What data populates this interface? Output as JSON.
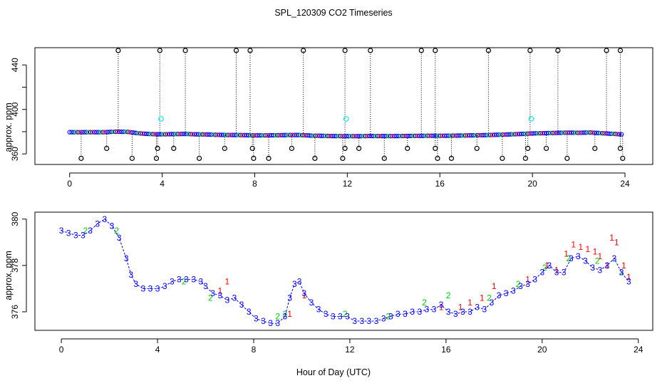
{
  "chart_data": {
    "title": "SPL_120309  CO2 Timeseries",
    "xlabel": "Hour of Day (UTC)",
    "colors": {
      "axis": "#000000",
      "series_1": "#ff0000",
      "series_2": "#00cc00",
      "series_3": "#0000ff",
      "outlier": "#000000",
      "highlight": "#00e5ee",
      "marker_dots": "#000000"
    },
    "panels": [
      {
        "type": "scatter",
        "ylabel": "approx. ppm",
        "xlim": [
          -1.5,
          25.2
        ],
        "ylim": [
          350.5,
          455.5
        ],
        "xticks": [
          0,
          4,
          8,
          12,
          16,
          20,
          24
        ],
        "yticks": [
          360,
          400,
          440
        ],
        "yticks_minor": [
          380,
          420
        ],
        "main_series": {
          "x": [
            0.0,
            0.5,
            1.0,
            1.5,
            2.0,
            2.5,
            3.0,
            3.5,
            4.0,
            4.5,
            5.0,
            5.5,
            6.0,
            6.5,
            7.0,
            7.5,
            8.0,
            8.5,
            9.0,
            9.5,
            10.0,
            10.5,
            11.0,
            11.5,
            12.0,
            12.5,
            13.0,
            13.5,
            14.0,
            14.5,
            15.0,
            15.5,
            16.0,
            16.5,
            17.0,
            17.5,
            18.0,
            18.5,
            19.0,
            19.5,
            20.0,
            20.5,
            21.0,
            21.5,
            22.0,
            22.5,
            23.0,
            23.5,
            23.9
          ],
          "y": [
            379.5,
            379.5,
            379.5,
            379.5,
            380.0,
            379.8,
            378.5,
            377.8,
            377.6,
            377.8,
            377.9,
            377.6,
            377.4,
            377.1,
            377.0,
            376.9,
            376.6,
            376.7,
            376.8,
            377.0,
            376.9,
            376.4,
            376.2,
            376.0,
            375.9,
            375.9,
            376.1,
            376.0,
            376.0,
            376.1,
            376.2,
            376.3,
            376.3,
            376.4,
            376.5,
            376.7,
            376.9,
            377.2,
            377.5,
            377.9,
            378.4,
            378.6,
            378.9,
            379.1,
            379.0,
            379.2,
            378.6,
            378.0,
            377.5
          ]
        },
        "outliers_high": {
          "y": 453,
          "x": [
            2.1,
            3.9,
            5.0,
            7.2,
            7.8,
            10.1,
            11.9,
            13.0,
            15.2,
            15.8,
            18.1,
            19.9,
            21.1,
            23.2,
            23.8
          ]
        },
        "outliers_low": {
          "y": 356,
          "x": [
            0.5,
            2.7,
            3.75,
            5.6,
            7.95,
            8.6,
            10.6,
            11.8,
            13.6,
            15.9,
            16.5,
            18.7,
            19.7,
            21.5,
            23.9
          ]
        },
        "outliers_mid": {
          "y": 365,
          "x": [
            1.6,
            3.8,
            4.5,
            6.7,
            7.9,
            9.6,
            11.9,
            12.5,
            14.6,
            15.8,
            17.6,
            19.8,
            20.6,
            22.7,
            23.8
          ]
        },
        "highlighted_points": {
          "x": [
            3.95,
            11.95,
            19.95
          ],
          "y": [
            391.5,
            391.5,
            391.5
          ]
        }
      },
      {
        "type": "scatter",
        "ylabel": "approx. ppm",
        "xlim": [
          -1.1,
          24.6
        ],
        "ylim": [
          375.2,
          380.3
        ],
        "xticks": [
          0,
          4,
          8,
          12,
          16,
          20,
          24
        ],
        "yticks": [
          376,
          378,
          380
        ],
        "series": [
          {
            "name": "1",
            "x": [
              6.6,
              6.9,
              9.5,
              10.1,
              15.8,
              16.6,
              17.0,
              17.5,
              18.0,
              19.4,
              20.2,
              20.6,
              21.0,
              21.3,
              21.6,
              21.9,
              22.2,
              22.4,
              22.7,
              22.9,
              23.1,
              23.4,
              23.6
            ],
            "y": [
              376.9,
              377.3,
              375.9,
              376.7,
              376.2,
              376.2,
              376.4,
              376.6,
              377.1,
              377.4,
              378.0,
              377.8,
              378.5,
              378.9,
              378.8,
              378.7,
              378.6,
              378.4,
              378.0,
              379.2,
              379.0,
              378.0,
              377.5
            ]
          },
          {
            "name": "2",
            "x": [
              1.0,
              2.3,
              5.1,
              6.2,
              9.0,
              9.3,
              11.8,
              13.6,
              15.1,
              16.1,
              17.8,
              19.0,
              20.1,
              21.1,
              22.3,
              23.3
            ],
            "y": [
              379.5,
              379.5,
              377.3,
              376.6,
              375.8,
              375.9,
              375.9,
              375.8,
              376.4,
              376.7,
              376.6,
              377.2,
              377.9,
              378.3,
              378.2,
              377.7
            ]
          },
          {
            "name": "3",
            "x": [
              0.0,
              0.3,
              0.6,
              0.9,
              1.2,
              1.5,
              1.8,
              2.1,
              2.4,
              2.7,
              2.9,
              3.1,
              3.4,
              3.7,
              4.0,
              4.3,
              4.6,
              4.9,
              5.2,
              5.5,
              5.8,
              6.0,
              6.3,
              6.6,
              6.9,
              7.2,
              7.5,
              7.8,
              8.1,
              8.4,
              8.7,
              9.0,
              9.3,
              9.5,
              9.7,
              9.9,
              10.1,
              10.4,
              10.7,
              11.0,
              11.3,
              11.6,
              11.9,
              12.2,
              12.5,
              12.8,
              13.1,
              13.4,
              13.7,
              14.0,
              14.3,
              14.6,
              14.9,
              15.2,
              15.5,
              15.8,
              16.1,
              16.4,
              16.7,
              17.0,
              17.3,
              17.6,
              17.9,
              18.2,
              18.5,
              18.8,
              19.1,
              19.4,
              19.7,
              20.0,
              20.3,
              20.6,
              20.9,
              21.2,
              21.5,
              21.8,
              22.1,
              22.4,
              22.7,
              23.0,
              23.3,
              23.6
            ],
            "y": [
              379.5,
              379.4,
              379.3,
              379.3,
              379.5,
              379.8,
              380.0,
              379.7,
              379.2,
              378.3,
              377.6,
              377.2,
              377.0,
              377.0,
              377.0,
              377.1,
              377.3,
              377.4,
              377.4,
              377.4,
              377.3,
              377.1,
              376.8,
              376.7,
              376.5,
              376.6,
              376.3,
              376.0,
              375.7,
              375.6,
              375.5,
              375.5,
              375.8,
              376.6,
              377.2,
              377.3,
              376.8,
              376.4,
              376.1,
              375.9,
              375.8,
              375.8,
              375.8,
              375.6,
              375.6,
              375.6,
              375.6,
              375.7,
              375.8,
              375.9,
              375.9,
              376.0,
              376.0,
              376.1,
              376.1,
              376.3,
              376.0,
              375.9,
              376.0,
              376.0,
              376.2,
              376.1,
              376.4,
              376.7,
              376.8,
              376.9,
              377.1,
              377.2,
              377.4,
              377.7,
              378.0,
              377.7,
              377.7,
              378.3,
              378.4,
              378.2,
              377.9,
              377.8,
              378.0,
              378.3,
              377.7,
              377.3
            ]
          }
        ]
      }
    ]
  }
}
